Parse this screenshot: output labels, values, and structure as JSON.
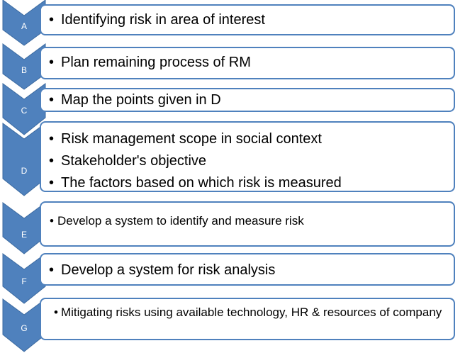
{
  "colors": {
    "chevron_fill": "#4f81bd",
    "chevron_stroke": "#3b6aa0",
    "box_border": "#4f81bd",
    "box_fill": "#ffffff",
    "letter_text": "#ffffff",
    "bullet_text": "#000000"
  },
  "bullet_glyph": "•",
  "steps": [
    {
      "letter": "A",
      "items": [
        "Identifying risk in area of interest"
      ]
    },
    {
      "letter": "B",
      "items": [
        "Plan remaining process of RM"
      ]
    },
    {
      "letter": "C",
      "items": [
        "Map the points given in D"
      ]
    },
    {
      "letter": "D",
      "items": [
        "Risk management scope in social context",
        "Stakeholder's objective",
        "The factors based on which risk is measured"
      ]
    },
    {
      "letter": "E",
      "items": [
        "Develop a system to identify and measure risk"
      ]
    },
    {
      "letter": "F",
      "items": [
        "Develop a system for risk analysis"
      ]
    },
    {
      "letter": "G",
      "items": [
        "Mitigating risks using available technology, HR & resources of company"
      ]
    }
  ]
}
